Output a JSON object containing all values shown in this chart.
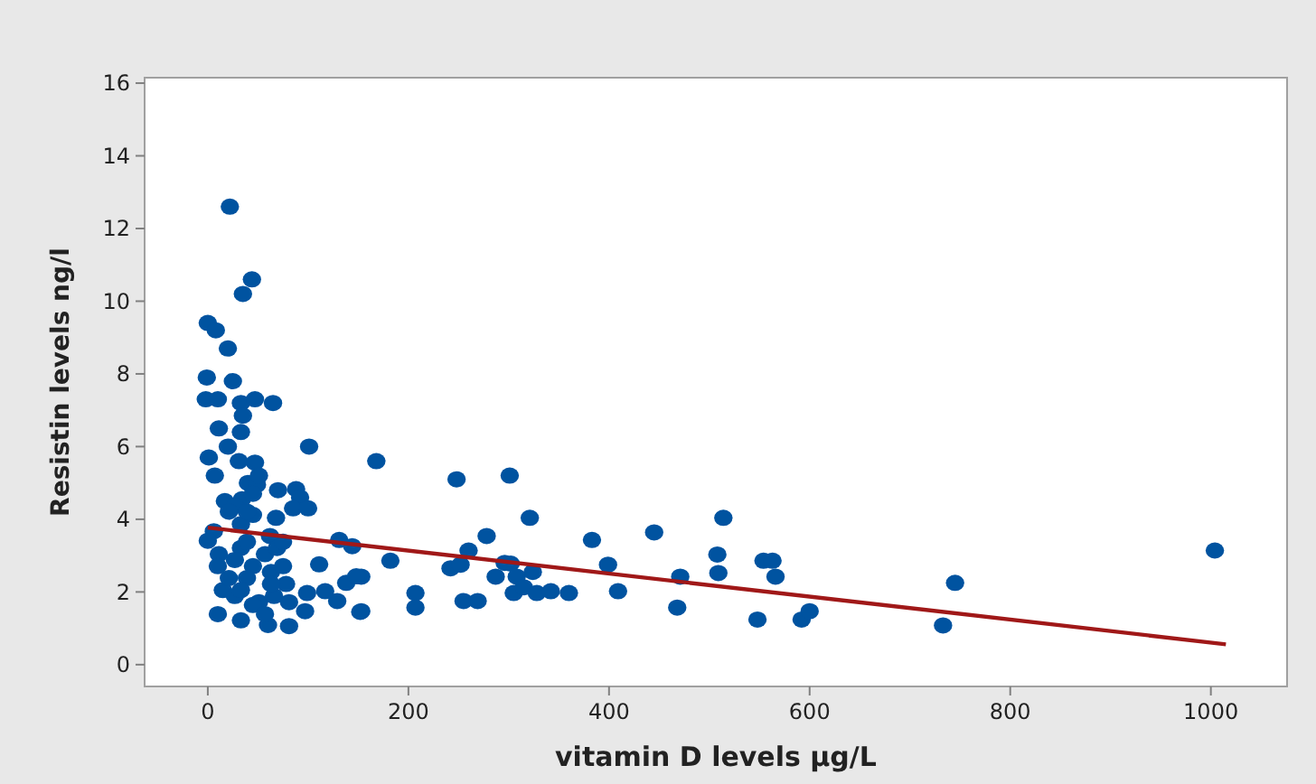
{
  "chart_data": {
    "type": "scatter",
    "xlabel": "vitamin D levels µg/L",
    "ylabel": "Resistin levels ng/l",
    "xlim": [
      -63,
      1076
    ],
    "ylim": [
      -0.6,
      16.15
    ],
    "xticks": [
      0,
      200,
      400,
      600,
      800,
      1000
    ],
    "yticks": [
      0,
      2,
      4,
      6,
      8,
      10,
      12,
      14,
      16
    ],
    "grid": false,
    "marker": "circle",
    "series": [
      {
        "color": "#0053a0",
        "x": [
          168,
          248,
          301,
          321,
          278,
          260,
          182,
          242,
          252,
          296,
          302,
          287,
          308,
          324,
          207,
          207,
          255,
          269,
          305,
          315,
          328,
          342,
          360,
          383,
          399,
          409,
          445,
          514,
          508,
          509,
          471,
          468,
          554,
          563,
          566,
          548,
          592,
          600,
          745,
          733,
          1004,
          153,
          153,
          22,
          44,
          35,
          0,
          8,
          20,
          -1,
          25,
          -2,
          10,
          33,
          47,
          65,
          35,
          11,
          33,
          20,
          101,
          1,
          31,
          47,
          7,
          40,
          49,
          70,
          88,
          92,
          17,
          34,
          85,
          100,
          68,
          6,
          0,
          33,
          45,
          62,
          131,
          144,
          111,
          11,
          10,
          15,
          10,
          33,
          60,
          81,
          97,
          152,
          129,
          138,
          148,
          117,
          99,
          78,
          63,
          45,
          39,
          27,
          51,
          57,
          33,
          21,
          69,
          66,
          45,
          33,
          81,
          63,
          27,
          39,
          45,
          27,
          39,
          51,
          21,
          75,
          75,
          57
        ],
        "values": [
          5.6,
          5.1,
          5.2,
          4.04,
          3.54,
          3.14,
          2.86,
          2.65,
          2.75,
          2.8,
          2.78,
          2.42,
          2.42,
          2.55,
          1.97,
          1.57,
          1.75,
          1.75,
          1.97,
          2.13,
          1.97,
          2.02,
          1.97,
          3.43,
          2.75,
          2.02,
          3.64,
          4.04,
          3.03,
          2.52,
          2.42,
          1.57,
          2.86,
          2.86,
          2.42,
          1.24,
          1.24,
          1.47,
          2.25,
          1.08,
          3.14,
          2.42,
          1.47,
          12.6,
          10.6,
          10.2,
          9.4,
          9.2,
          8.7,
          7.9,
          7.8,
          7.3,
          7.3,
          7.2,
          7.3,
          7.2,
          6.85,
          6.5,
          6.4,
          6.0,
          6.0,
          5.7,
          5.6,
          5.56,
          5.2,
          5.0,
          4.95,
          4.8,
          4.83,
          4.6,
          4.5,
          4.55,
          4.3,
          4.3,
          4.04,
          3.67,
          3.41,
          3.87,
          4.12,
          3.54,
          3.43,
          3.26,
          2.76,
          3.04,
          2.71,
          2.05,
          1.39,
          1.22,
          1.09,
          1.06,
          1.47,
          1.45,
          1.75,
          2.25,
          2.43,
          2.02,
          1.97,
          2.22,
          2.55,
          2.71,
          2.38,
          1.89,
          1.72,
          3.04,
          3.21,
          2.38,
          3.21,
          1.89,
          1.64,
          2.05,
          1.72,
          2.22,
          2.88,
          3.38,
          4.7,
          4.37,
          4.21,
          5.2,
          4.21,
          3.38,
          2.71,
          1.39
        ]
      },
      {
        "type": "line",
        "color": "#a01818",
        "marker": "none",
        "line_style": "solid",
        "x": [
          0,
          1015
        ],
        "values": [
          3.77,
          0.56
        ]
      }
    ]
  }
}
